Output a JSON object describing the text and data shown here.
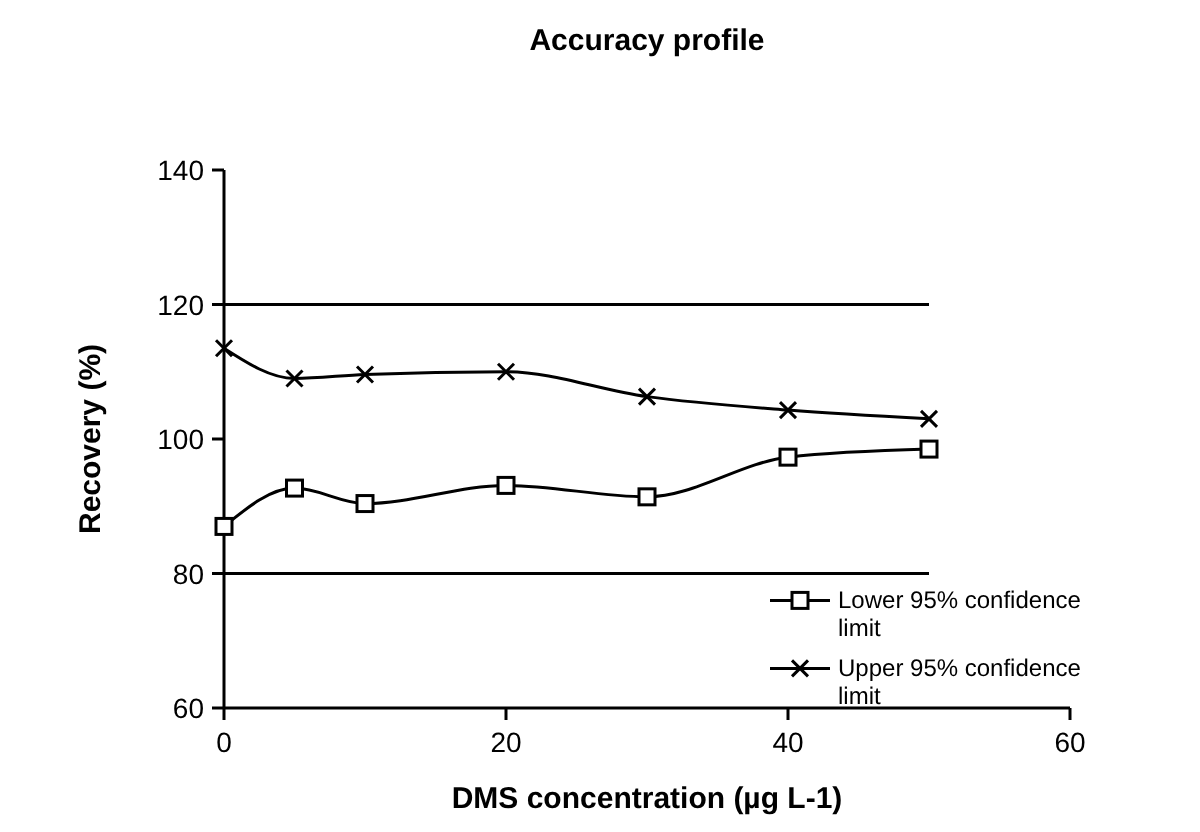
{
  "chart_data": {
    "type": "line",
    "title": "Accuracy profile",
    "xlabel": "DMS concentration (µg L-1)",
    "ylabel": "Recovery (%)",
    "x": [
      0,
      5,
      10,
      20,
      30,
      40,
      50
    ],
    "series": [
      {
        "name": "Lower 95% confidence limit",
        "color": "#000000",
        "marker": "square",
        "values": [
          87,
          92.7,
          90.4,
          93.1,
          91.4,
          97.3,
          98.5
        ]
      },
      {
        "name": "Upper 95% confidence limit",
        "color": "#000000",
        "marker": "cross",
        "values": [
          113.5,
          109,
          109.6,
          110,
          106.3,
          104.3,
          103
        ]
      }
    ],
    "ref_lines": [
      {
        "axis": "y",
        "value": 120,
        "color": "#000000"
      },
      {
        "axis": "y",
        "value": 80,
        "color": "#000000"
      }
    ],
    "xlim": [
      0,
      60
    ],
    "xticks": [
      0,
      20,
      40,
      60
    ],
    "ylim": [
      60,
      140
    ],
    "yticks": [
      60,
      80,
      100,
      120,
      140
    ],
    "grid": false,
    "legend": "right",
    "line_style": "solid"
  }
}
